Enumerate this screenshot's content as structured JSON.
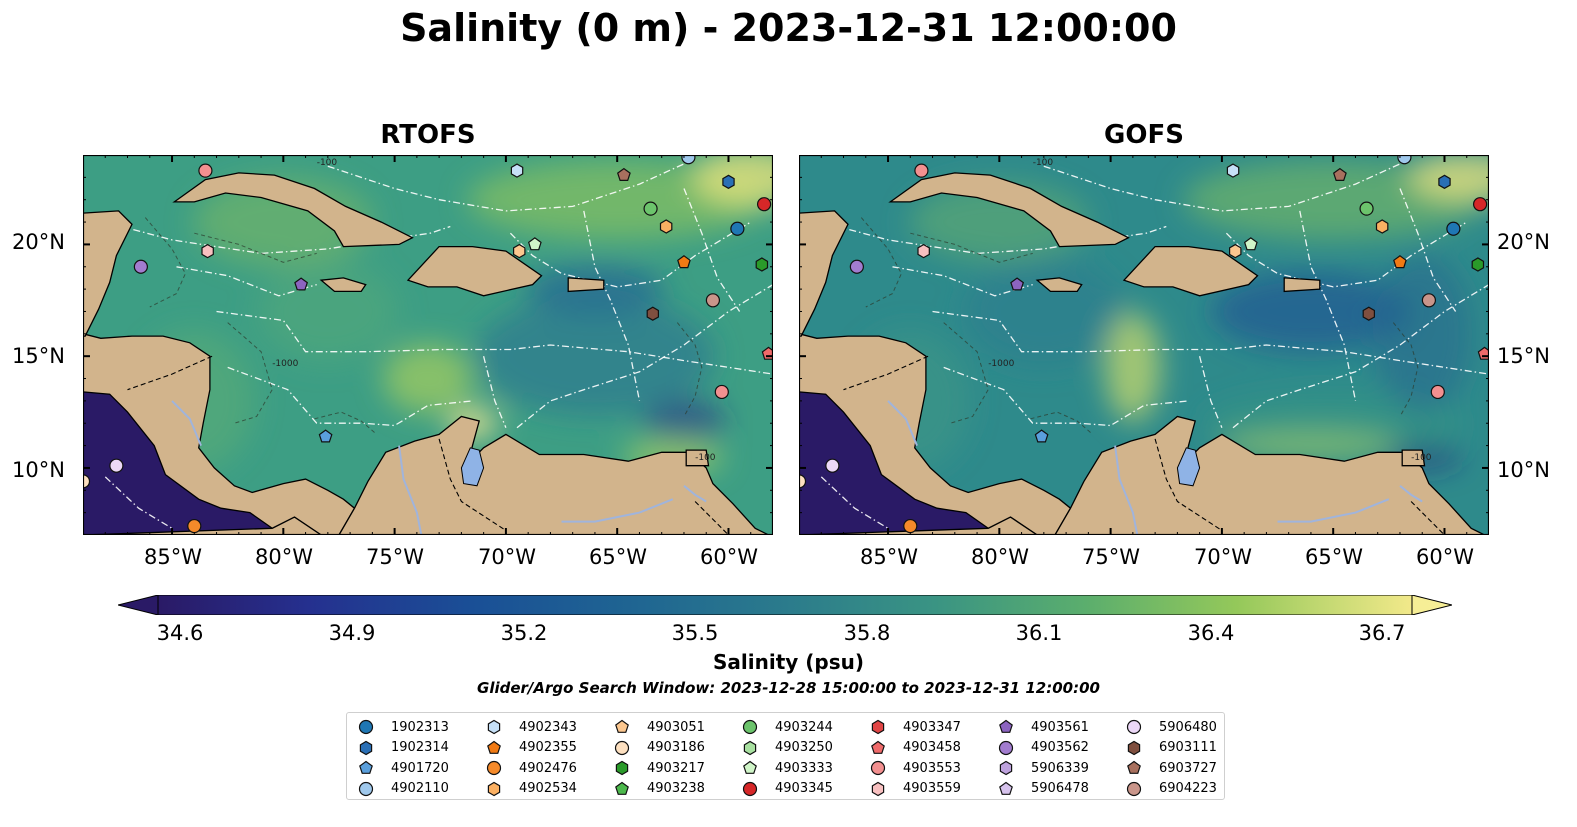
{
  "figure": {
    "title": "Salinity (0 m) - 2023-12-31 12:00:00",
    "search_window": "Glider/Argo Search Window: 2023-12-28 15:00:00 to 2023-12-31 12:00:00"
  },
  "panels": [
    {
      "title": "RTOFS",
      "model": "RTOFS"
    },
    {
      "title": "GOFS",
      "model": "GOFS"
    }
  ],
  "map": {
    "lon_range": [
      -89,
      -58
    ],
    "lat_range": [
      7,
      24
    ],
    "lat_ticks": [
      {
        "value": 10,
        "label": "10°N"
      },
      {
        "value": 15,
        "label": "15°N"
      },
      {
        "value": 20,
        "label": "20°N"
      }
    ],
    "lon_ticks": [
      {
        "value": -85,
        "label": "85°W"
      },
      {
        "value": -80,
        "label": "80°W"
      },
      {
        "value": -75,
        "label": "75°W"
      },
      {
        "value": -70,
        "label": "70°W"
      },
      {
        "value": -65,
        "label": "65°W"
      },
      {
        "value": -60,
        "label": "60°W"
      }
    ],
    "bathymetry_contour_labels": [
      "-100",
      "-1000",
      "-100"
    ],
    "colors": {
      "land": "#d2b48c",
      "river": "#a0b4dc",
      "lake": "#8fb3e6",
      "eez_lines": "#ffffff"
    }
  },
  "colorbar": {
    "label": "Salinity (psu)",
    "min": 34.6,
    "max": 36.7,
    "ticks": [
      "34.6",
      "34.9",
      "35.2",
      "35.5",
      "35.8",
      "36.1",
      "36.4",
      "36.7"
    ],
    "colormap": "haline"
  },
  "legend": {
    "columns": [
      [
        {
          "id": "1902313",
          "marker": "circle",
          "color": "#1f77b4"
        },
        {
          "id": "1902314",
          "marker": "hexagon",
          "color": "#2a6fb5"
        },
        {
          "id": "4901720",
          "marker": "pentagon",
          "color": "#5a9fdc"
        },
        {
          "id": "4902110",
          "marker": "circle",
          "color": "#9fc8ec"
        }
      ],
      [
        {
          "id": "4902343",
          "marker": "hexagon",
          "color": "#c6e0f7"
        },
        {
          "id": "4902355",
          "marker": "pentagon",
          "color": "#f07a14"
        },
        {
          "id": "4902476",
          "marker": "circle",
          "color": "#f58a2a"
        },
        {
          "id": "4902534",
          "marker": "hexagon",
          "color": "#fbb062"
        }
      ],
      [
        {
          "id": "4903051",
          "marker": "pentagon",
          "color": "#fcc78f"
        },
        {
          "id": "4903186",
          "marker": "circle",
          "color": "#fde0c0"
        },
        {
          "id": "4903217",
          "marker": "hexagon",
          "color": "#2a9a2a"
        },
        {
          "id": "4903238",
          "marker": "pentagon",
          "color": "#4cb84c"
        }
      ],
      [
        {
          "id": "4903244",
          "marker": "circle",
          "color": "#6cc46c"
        },
        {
          "id": "4903250",
          "marker": "hexagon",
          "color": "#a8e0a0"
        },
        {
          "id": "4903333",
          "marker": "pentagon",
          "color": "#d0f5c8"
        },
        {
          "id": "4903345",
          "marker": "circle",
          "color": "#d62728"
        }
      ],
      [
        {
          "id": "4903347",
          "marker": "hexagon",
          "color": "#e04545"
        },
        {
          "id": "4903458",
          "marker": "pentagon",
          "color": "#ef6a6a"
        },
        {
          "id": "4903553",
          "marker": "circle",
          "color": "#f39090"
        },
        {
          "id": "4903559",
          "marker": "hexagon",
          "color": "#f8c0c0"
        }
      ],
      [
        {
          "id": "4903561",
          "marker": "pentagon",
          "color": "#8c64c0"
        },
        {
          "id": "4903562",
          "marker": "circle",
          "color": "#a27ccf"
        },
        {
          "id": "5906339",
          "marker": "hexagon",
          "color": "#bea2dd"
        },
        {
          "id": "5906478",
          "marker": "pentagon",
          "color": "#d6c2ec"
        }
      ],
      [
        {
          "id": "5906480",
          "marker": "circle",
          "color": "#ecd8f7"
        },
        {
          "id": "6903111",
          "marker": "hexagon",
          "color": "#7f4f3f"
        },
        {
          "id": "6903727",
          "marker": "pentagon",
          "color": "#a8705e"
        },
        {
          "id": "6904223",
          "marker": "circle",
          "color": "#c9958a"
        }
      ]
    ]
  },
  "floats": [
    {
      "lon": -83.5,
      "lat": 23.3,
      "marker": "circle",
      "color": "#f39090"
    },
    {
      "lon": -69.5,
      "lat": 23.3,
      "marker": "hexagon",
      "color": "#c6e0f7"
    },
    {
      "lon": -64.7,
      "lat": 23.1,
      "marker": "pentagon",
      "color": "#a8705e"
    },
    {
      "lon": -61.8,
      "lat": 23.9,
      "marker": "circle",
      "color": "#9fc8ec"
    },
    {
      "lon": -60.0,
      "lat": 22.8,
      "marker": "hexagon",
      "color": "#2a6fb5"
    },
    {
      "lon": -58.4,
      "lat": 21.8,
      "marker": "circle",
      "color": "#d62728"
    },
    {
      "lon": -63.5,
      "lat": 21.6,
      "marker": "circle",
      "color": "#6cc46c"
    },
    {
      "lon": -62.8,
      "lat": 20.8,
      "marker": "hexagon",
      "color": "#fbb062"
    },
    {
      "lon": -59.6,
      "lat": 20.7,
      "marker": "circle",
      "color": "#1f77b4"
    },
    {
      "lon": -83.4,
      "lat": 19.7,
      "marker": "hexagon",
      "color": "#f8c0c0"
    },
    {
      "lon": -86.4,
      "lat": 19.0,
      "marker": "circle",
      "color": "#a27ccf"
    },
    {
      "lon": -69.4,
      "lat": 19.7,
      "marker": "hexagon",
      "color": "#fcc78f"
    },
    {
      "lon": -68.7,
      "lat": 20.0,
      "marker": "pentagon",
      "color": "#d0f5c8"
    },
    {
      "lon": -62.0,
      "lat": 19.2,
      "marker": "pentagon",
      "color": "#f07a14"
    },
    {
      "lon": -58.5,
      "lat": 19.1,
      "marker": "hexagon",
      "color": "#2a9a2a"
    },
    {
      "lon": -79.2,
      "lat": 18.2,
      "marker": "pentagon",
      "color": "#8c64c0"
    },
    {
      "lon": -60.7,
      "lat": 17.5,
      "marker": "circle",
      "color": "#c9958a"
    },
    {
      "lon": -63.4,
      "lat": 16.9,
      "marker": "hexagon",
      "color": "#7f4f3f"
    },
    {
      "lon": -58.2,
      "lat": 15.1,
      "marker": "pentagon",
      "color": "#ef6a6a"
    },
    {
      "lon": -60.3,
      "lat": 13.4,
      "marker": "circle",
      "color": "#f39090"
    },
    {
      "lon": -78.1,
      "lat": 11.4,
      "marker": "pentagon",
      "color": "#5a9fdc"
    },
    {
      "lon": -87.5,
      "lat": 10.1,
      "marker": "circle",
      "color": "#ecd8f7"
    },
    {
      "lon": -89.0,
      "lat": 9.4,
      "marker": "circle",
      "color": "#fde0c0"
    },
    {
      "lon": -84.0,
      "lat": 7.4,
      "marker": "circle",
      "color": "#f58a2a"
    }
  ]
}
